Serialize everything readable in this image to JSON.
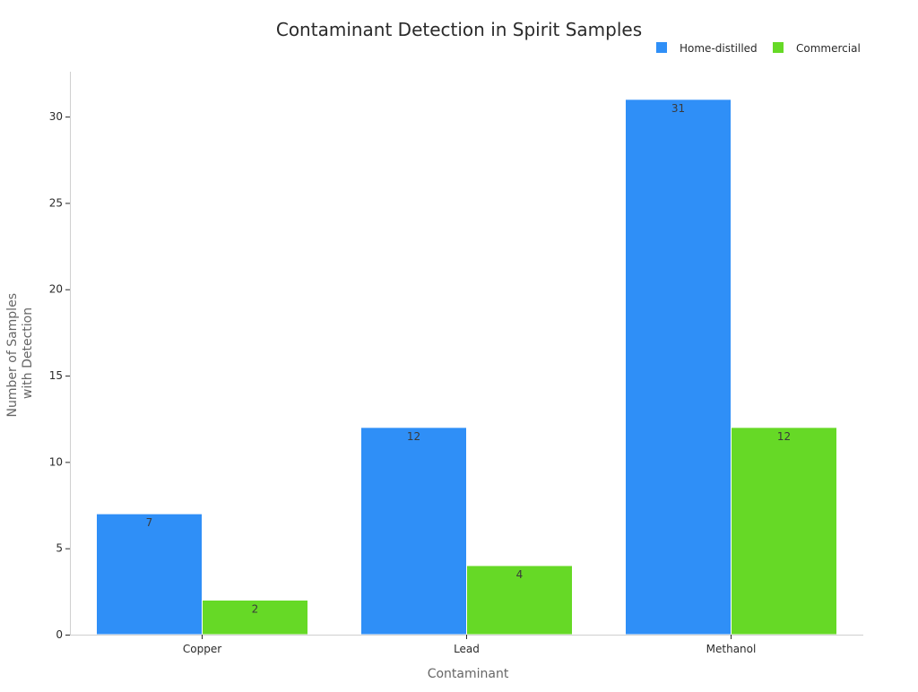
{
  "chart_data": {
    "type": "bar",
    "title": "Contaminant Detection in Spirit Samples",
    "xlabel": "Contaminant",
    "ylabel_lines": [
      "Number of Samples",
      "with Detection"
    ],
    "categories": [
      "Copper",
      "Lead",
      "Methanol"
    ],
    "series": [
      {
        "name": "Home-distilled",
        "color": "#2F8FF7",
        "values": [
          7,
          12,
          31
        ]
      },
      {
        "name": "Commercial",
        "color": "#66D926",
        "values": [
          2,
          4,
          12
        ]
      }
    ],
    "ylim": [
      0,
      32.6
    ],
    "yticks": [
      0,
      5,
      10,
      15,
      20,
      25,
      30
    ],
    "grid": false,
    "legend_position": "top-right",
    "data_labels": true
  }
}
